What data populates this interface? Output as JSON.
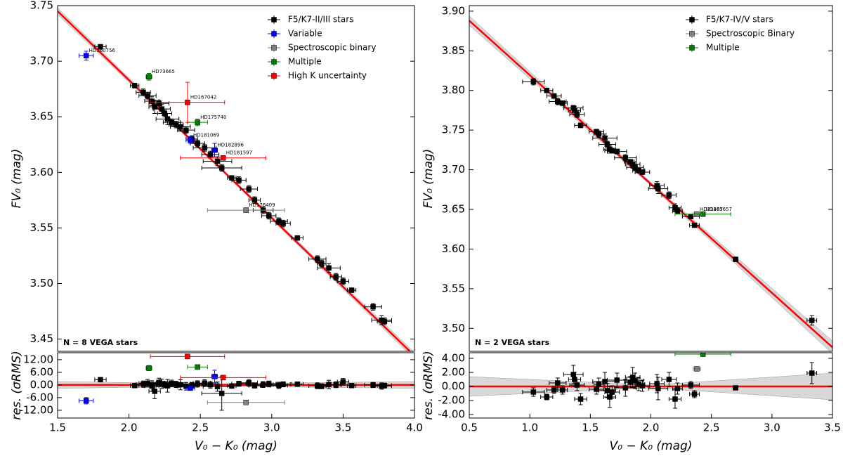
{
  "chart_data": [
    {
      "type": "scatter",
      "ylabel": "FV₀ (mag)",
      "xlim": [
        1.5,
        4.0
      ],
      "ylim": [
        3.439,
        3.75
      ],
      "yticks": [
        3.45,
        {
          "value": 3.5,
          "label": "3.50"
        },
        3.55,
        {
          "value": 3.6,
          "label": "3.60"
        },
        3.65,
        {
          "value": 3.7,
          "label": "3.70"
        },
        3.75
      ],
      "legend": "upper right",
      "annotation": "N = 8 VEGA stars",
      "fit": {
        "color": "#ff0000",
        "x": [
          1.5,
          4.0
        ],
        "values": [
          3.745,
          3.435
        ]
      },
      "band": {
        "color": "#c8c8c8",
        "x": [
          1.5,
          2.6,
          4.0
        ],
        "lower": [
          3.742,
          3.6078,
          3.432
        ],
        "upper": [
          3.748,
          3.6094,
          3.438
        ]
      },
      "series": [
        {
          "name": "F5/K7-II/III stars",
          "color": "#000000",
          "x": [
            1.8,
            2.04,
            2.1,
            2.13,
            2.16,
            2.18,
            2.21,
            2.23,
            2.25,
            2.27,
            2.3,
            2.33,
            2.36,
            2.4,
            2.44,
            2.48,
            2.53,
            2.57,
            2.62,
            2.65,
            2.72,
            2.77,
            2.84,
            2.88,
            2.94,
            2.98,
            3.05,
            3.08,
            3.18,
            3.32,
            3.35,
            3.4,
            3.45,
            3.5,
            3.56,
            3.71,
            3.77,
            3.79
          ],
          "values": [
            3.713,
            3.678,
            3.672,
            3.669,
            3.664,
            3.659,
            3.662,
            3.657,
            3.653,
            3.648,
            3.645,
            3.643,
            3.641,
            3.638,
            3.63,
            3.626,
            3.622,
            3.616,
            3.61,
            3.604,
            3.595,
            3.593,
            3.585,
            3.575,
            3.566,
            3.561,
            3.556,
            3.554,
            3.541,
            3.522,
            3.518,
            3.514,
            3.506,
            3.502,
            3.494,
            3.479,
            3.467,
            3.466
          ],
          "xerr": [
            0.04,
            0.03,
            0.05,
            0.06,
            0.05,
            0.04,
            0.07,
            0.06,
            0.05,
            0.08,
            0.06,
            0.05,
            0.07,
            0.06,
            0.04,
            0.05,
            0.08,
            0.06,
            0.1,
            0.14,
            0.03,
            0.05,
            0.06,
            0.04,
            0.07,
            0.05,
            0.06,
            0.05,
            0.04,
            0.06,
            0.03,
            0.08,
            0.04,
            0.04,
            0.03,
            0.06,
            0.07,
            0.05
          ],
          "yerr": [
            0.002,
            0.002,
            0.003,
            0.003,
            0.004,
            0.006,
            0.003,
            0.004,
            0.003,
            0.005,
            0.003,
            0.003,
            0.004,
            0.003,
            0.003,
            0.003,
            0.003,
            0.003,
            0.004,
            0.003,
            0.002,
            0.003,
            0.003,
            0.003,
            0.003,
            0.003,
            0.003,
            0.003,
            0.002,
            0.003,
            0.003,
            0.004,
            0.003,
            0.003,
            0.002,
            0.003,
            0.004,
            0.003
          ]
        },
        {
          "name": "Variable",
          "color": "#0000ff",
          "x": [
            1.7,
            2.43,
            2.6
          ],
          "values": [
            3.705,
            3.629,
            3.62
          ],
          "xerr": [
            0.05,
            0.03,
            0.02
          ],
          "yerr": [
            0.004,
            0.003,
            0.006
          ],
          "labels": [
            "HD160756",
            "HD181069",
            "HD182896"
          ]
        },
        {
          "name": "Spectroscopic binary",
          "color": "#808080",
          "x": [
            2.82
          ],
          "values": [
            3.566
          ],
          "xerr": [
            0.27
          ],
          "yerr": [
            0.002
          ],
          "labels": [
            "HD176409"
          ]
        },
        {
          "name": "Multiple",
          "color": "#008000",
          "x": [
            2.14,
            2.48
          ],
          "values": [
            3.686,
            3.645
          ],
          "xerr": [
            0.02,
            0.07
          ],
          "yerr": [
            0.003,
            0.003
          ],
          "labels": [
            "HD73665",
            "HD175740"
          ]
        },
        {
          "name": "High K uncertainty",
          "color": "#ff0000",
          "x": [
            2.41,
            2.66
          ],
          "values": [
            3.663,
            3.613
          ],
          "xerr": [
            0.26,
            0.3
          ],
          "yerr": [
            0.018,
            0.002
          ],
          "labels": [
            "HD167042",
            "HD181597"
          ]
        }
      ]
    },
    {
      "type": "scatter",
      "ylabel": "res. (σRMS)",
      "xlabel": "V₀ − K₀ (mag)",
      "xlim": [
        1.5,
        4.0
      ],
      "ylim": [
        -15.7,
        15.3
      ],
      "xticks": [
        1.5,
        {
          "value": 2,
          "label": "2.0"
        },
        2.5,
        {
          "value": 3,
          "label": "3.0"
        },
        3.5,
        {
          "value": 4,
          "label": "4.0"
        }
      ],
      "yticks": [
        {
          "value": -12,
          "label": "-12.00"
        },
        {
          "value": -6,
          "label": "-6.00"
        },
        {
          "value": 0,
          "label": "0.00"
        },
        {
          "value": 6,
          "label": "6.00"
        },
        {
          "value": 12,
          "label": "12.00"
        }
      ],
      "fit": {
        "color": "#ff0000",
        "x": [
          1.5,
          4.0
        ],
        "values": [
          0,
          0
        ]
      },
      "band": {
        "color": "#c8c8c8",
        "x": [
          1.5,
          2.6,
          4.0
        ],
        "lower": [
          -1.6,
          -0.6,
          -1.6
        ],
        "upper": [
          1.6,
          0.6,
          1.6
        ]
      },
      "series": [
        {
          "color": "#000000",
          "x": [
            1.8,
            2.04,
            2.1,
            2.13,
            2.16,
            2.18,
            2.21,
            2.23,
            2.25,
            2.27,
            2.3,
            2.33,
            2.36,
            2.4,
            2.44,
            2.48,
            2.53,
            2.57,
            2.62,
            2.65,
            2.72,
            2.77,
            2.84,
            2.88,
            2.94,
            2.98,
            3.05,
            3.08,
            3.18,
            3.32,
            3.35,
            3.4,
            3.45,
            3.5,
            3.56,
            3.71,
            3.77,
            3.79
          ],
          "values": [
            2.5,
            -0.3,
            0.4,
            0.8,
            -0.5,
            -3.0,
            1.2,
            0.6,
            0.2,
            -0.4,
            0.7,
            0.3,
            0.1,
            -0.6,
            -0.2,
            0.5,
            0.9,
            0.1,
            -0.8,
            -4.0,
            -0.5,
            0.6,
            1.0,
            -0.3,
            0.2,
            0.5,
            -0.2,
            0.3,
            0.4,
            -0.4,
            -0.6,
            0.2,
            0.1,
            1.5,
            -0.3,
            0.0,
            -0.5,
            -0.3
          ],
          "xerr": [
            0.04,
            0.03,
            0.05,
            0.06,
            0.05,
            0.04,
            0.07,
            0.06,
            0.05,
            0.08,
            0.06,
            0.05,
            0.07,
            0.06,
            0.04,
            0.05,
            0.08,
            0.06,
            0.1,
            0.14,
            0.03,
            0.05,
            0.06,
            0.04,
            0.07,
            0.05,
            0.06,
            0.05,
            0.04,
            0.06,
            0.03,
            0.08,
            0.04,
            0.04,
            0.03,
            0.06,
            0.07,
            0.05
          ],
          "yerr": [
            0.8,
            0.6,
            1.5,
            1.8,
            2.5,
            3.5,
            2.0,
            2.2,
            1.5,
            3.0,
            1.6,
            1.5,
            2.4,
            1.8,
            1.4,
            1.5,
            1.6,
            1.6,
            2.2,
            8.0,
            1.0,
            1.2,
            1.6,
            1.2,
            1.4,
            1.4,
            1.5,
            1.2,
            0.9,
            1.4,
            1.2,
            2.0,
            1.4,
            1.6,
            0.8,
            1.2,
            1.5,
            1.2
          ]
        },
        {
          "color": "#0000ff",
          "x": [
            1.7,
            2.43,
            2.6
          ],
          "values": [
            -7.5,
            -1.5,
            4.0
          ],
          "xerr": [
            0.05,
            0.03,
            0.02
          ],
          "yerr": [
            1.5,
            1.0,
            3.0
          ]
        },
        {
          "color": "#808080",
          "x": [
            2.82
          ],
          "values": [
            -8.3
          ],
          "xerr": [
            0.27
          ],
          "yerr": [
            0.5
          ]
        },
        {
          "color": "#008000",
          "x": [
            2.14,
            2.48
          ],
          "values": [
            8.0,
            8.5
          ],
          "xerr": [
            0.02,
            0.07
          ],
          "yerr": [
            1.2,
            1.0
          ]
        },
        {
          "color": "#ff0000",
          "x": [
            2.41,
            2.66
          ],
          "values": [
            13.5,
            3.5
          ],
          "xerr": [
            0.26,
            0.3
          ],
          "yerr": [
            1.0,
            0.6
          ]
        }
      ]
    },
    {
      "type": "scatter",
      "ylabel": "FV₀ (mag)",
      "xlim": [
        0.5,
        3.5
      ],
      "ylim": [
        3.471,
        3.907
      ],
      "yticks": [
        {
          "value": 3.5,
          "label": "3.50"
        },
        3.55,
        {
          "value": 3.6,
          "label": "3.60"
        },
        3.65,
        {
          "value": 3.7,
          "label": "3.70"
        },
        3.75,
        {
          "value": 3.8,
          "label": "3.80"
        },
        3.85,
        {
          "value": 3.9,
          "label": "3.90"
        }
      ],
      "legend": "upper right",
      "annotation": "N = 2 VEGA stars",
      "fit": {
        "color": "#ff0000",
        "x": [
          0.5,
          3.5
        ],
        "values": [
          3.888,
          3.476
        ]
      },
      "band": {
        "color": "#c8c8c8",
        "x": [
          0.5,
          2.0,
          3.5
        ],
        "lower": [
          3.882,
          3.68,
          3.468
        ],
        "upper": [
          3.894,
          3.684,
          3.484
        ]
      },
      "series": [
        {
          "name": "F5/K7-IV/V stars",
          "color": "#000000",
          "x": [
            1.03,
            1.14,
            1.2,
            1.23,
            1.27,
            1.36,
            1.37,
            1.39,
            1.42,
            1.55,
            1.57,
            1.62,
            1.64,
            1.66,
            1.68,
            1.72,
            1.79,
            1.83,
            1.85,
            1.87,
            1.9,
            1.93,
            2.05,
            2.06,
            2.15,
            2.2,
            2.22,
            2.33,
            2.36,
            2.7,
            3.33
          ],
          "values": [
            3.811,
            3.8,
            3.793,
            3.786,
            3.784,
            3.778,
            3.775,
            3.77,
            3.756,
            3.748,
            3.745,
            3.74,
            3.732,
            3.726,
            3.724,
            3.723,
            3.715,
            3.71,
            3.707,
            3.703,
            3.699,
            3.697,
            3.68,
            3.676,
            3.668,
            3.652,
            3.648,
            3.641,
            3.63,
            3.587,
            3.51
          ],
          "xerr": [
            0.09,
            0.05,
            0.06,
            0.07,
            0.04,
            0.08,
            0.05,
            0.06,
            0.05,
            0.06,
            0.04,
            0.1,
            0.07,
            0.05,
            0.06,
            0.08,
            0.09,
            0.05,
            0.06,
            0.07,
            0.05,
            0.06,
            0.06,
            0.08,
            0.06,
            0.05,
            0.04,
            0.07,
            0.04,
            0.02,
            0.04
          ],
          "yerr": [
            0.004,
            0.002,
            0.003,
            0.004,
            0.003,
            0.003,
            0.005,
            0.004,
            0.003,
            0.003,
            0.004,
            0.005,
            0.004,
            0.005,
            0.003,
            0.003,
            0.004,
            0.003,
            0.005,
            0.004,
            0.003,
            0.003,
            0.005,
            0.006,
            0.004,
            0.005,
            0.003,
            0.002,
            0.002,
            0.001,
            0.006
          ]
        },
        {
          "name": "Spectroscopic Binary",
          "color": "#808080",
          "x": [
            2.38
          ],
          "values": [
            3.644
          ],
          "xerr": [
            0.03
          ],
          "yerr": [
            0.002
          ],
          "labels": [
            "HD21467"
          ]
        },
        {
          "name": "Multiple",
          "color": "#008000",
          "x": [
            2.43
          ],
          "values": [
            3.644
          ],
          "xerr": [
            0.23
          ],
          "yerr": [
            0.001
          ],
          "labels": [
            "HD185657"
          ]
        }
      ]
    },
    {
      "type": "scatter",
      "ylabel": "res. (σRMS)",
      "xlabel": "V₀ − K₀ (mag)",
      "xlim": [
        0.5,
        3.5
      ],
      "ylim": [
        -4.5,
        4.8
      ],
      "xticks": [
        0.5,
        {
          "value": 1,
          "label": "1.0"
        },
        1.5,
        {
          "value": 2,
          "label": "2.0"
        },
        2.5,
        {
          "value": 3,
          "label": "3.0"
        },
        3.5
      ],
      "yticks": [
        {
          "value": -4,
          "label": "-4.00"
        },
        {
          "value": -2,
          "label": "-2.00"
        },
        {
          "value": 0,
          "label": "0.00"
        },
        {
          "value": 2,
          "label": "2.00"
        },
        {
          "value": 4,
          "label": "4.00"
        }
      ],
      "fit": {
        "color": "#ff0000",
        "x": [
          0.5,
          3.5
        ],
        "values": [
          0,
          0
        ]
      },
      "band": {
        "color": "#c8c8c8",
        "x": [
          0.5,
          2.0,
          3.5
        ],
        "lower": [
          -1.4,
          -0.2,
          -1.9
        ],
        "upper": [
          1.4,
          0.2,
          1.9
        ]
      },
      "series": [
        {
          "color": "#000000",
          "x": [
            1.03,
            1.14,
            1.2,
            1.23,
            1.27,
            1.36,
            1.37,
            1.39,
            1.42,
            1.55,
            1.57,
            1.62,
            1.64,
            1.66,
            1.68,
            1.72,
            1.79,
            1.83,
            1.85,
            1.87,
            1.9,
            1.93,
            2.05,
            2.06,
            2.15,
            2.2,
            2.22,
            2.33,
            2.36,
            2.7,
            3.33
          ],
          "values": [
            -0.8,
            -1.5,
            -0.5,
            0.5,
            -0.5,
            1.7,
            1.0,
            0.2,
            -1.8,
            -0.4,
            0.3,
            0.7,
            -0.6,
            -1.5,
            -0.8,
            0.9,
            -0.2,
            0.6,
            1.3,
            0.8,
            0.3,
            0.1,
            0.4,
            -0.3,
            1.0,
            -1.8,
            -0.3,
            0.2,
            -1.1,
            -0.2,
            1.9
          ],
          "xerr": [
            0.09,
            0.05,
            0.06,
            0.07,
            0.04,
            0.08,
            0.05,
            0.06,
            0.05,
            0.06,
            0.04,
            0.1,
            0.07,
            0.05,
            0.06,
            0.08,
            0.09,
            0.05,
            0.06,
            0.07,
            0.05,
            0.06,
            0.06,
            0.08,
            0.06,
            0.05,
            0.04,
            0.07,
            0.04,
            0.02,
            0.04
          ],
          "yerr": [
            0.6,
            0.4,
            0.5,
            0.7,
            0.6,
            1.3,
            1.0,
            0.8,
            0.8,
            0.7,
            0.9,
            1.3,
            1.0,
            1.5,
            0.9,
            1.0,
            1.2,
            0.8,
            1.4,
            1.1,
            0.9,
            0.8,
            1.3,
            1.6,
            1.0,
            1.3,
            0.8,
            0.5,
            0.5,
            0.3,
            1.5
          ]
        },
        {
          "color": "#808080",
          "x": [
            2.38
          ],
          "values": [
            2.5
          ],
          "xerr": [
            0.03
          ],
          "yerr": [
            0.3
          ]
        },
        {
          "color": "#008000",
          "x": [
            2.43
          ],
          "values": [
            4.6
          ],
          "xerr": [
            0.23
          ],
          "yerr": [
            0.3
          ]
        }
      ]
    }
  ]
}
